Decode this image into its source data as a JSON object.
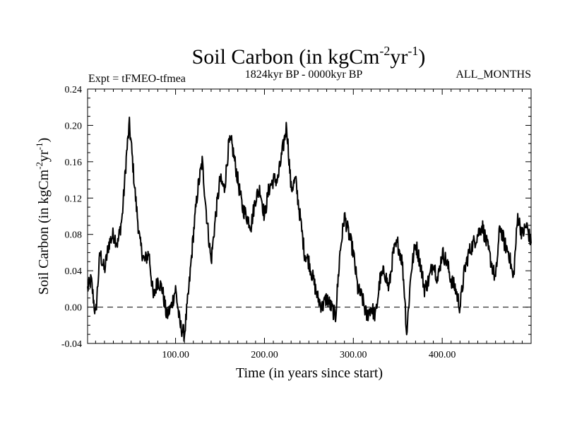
{
  "chart_data": {
    "type": "line",
    "title": {
      "main": "Soil Carbon (in kgCm",
      "sup1": "-2",
      "mid": "yr",
      "sup2": "-1",
      "end": ")"
    },
    "subtitle_left": "Expt = tFMEO-tfmea",
    "subtitle_center": "1824kyr BP - 0000kyr BP",
    "subtitle_right": "ALL_MONTHS",
    "xlabel": "Time (in years since start)",
    "ylabel": {
      "main": "Soil Carbon (in kgCm",
      "sup1": "-2",
      "mid": "yr",
      "sup2": "-1",
      "end": ")"
    },
    "xlim": [
      1,
      500
    ],
    "ylim": [
      -0.04,
      0.24
    ],
    "xticks": [
      100,
      200,
      300,
      400
    ],
    "xtick_labels": [
      "100.00",
      "200.00",
      "300.00",
      "400.00"
    ],
    "yticks": [
      -0.04,
      0.0,
      0.04,
      0.08,
      0.12,
      0.16,
      0.2,
      0.24
    ],
    "ytick_labels": [
      "-0.04",
      "0.00",
      "0.04",
      "0.08",
      "0.12",
      "0.16",
      "0.20",
      "0.24"
    ],
    "zero_line": 0.0,
    "series": [
      {
        "name": "Soil Carbon",
        "color": "#000000",
        "x": [
          1,
          5,
          10,
          15,
          20,
          25,
          30,
          35,
          40,
          45,
          48,
          50,
          55,
          60,
          65,
          70,
          75,
          80,
          85,
          90,
          95,
          100,
          105,
          110,
          115,
          120,
          125,
          130,
          135,
          140,
          145,
          150,
          155,
          160,
          163,
          165,
          170,
          175,
          180,
          185,
          190,
          195,
          200,
          205,
          210,
          215,
          220,
          225,
          230,
          235,
          240,
          245,
          250,
          255,
          260,
          265,
          270,
          275,
          280,
          285,
          290,
          295,
          300,
          305,
          310,
          315,
          320,
          325,
          330,
          335,
          340,
          345,
          350,
          355,
          358,
          360,
          365,
          370,
          375,
          380,
          385,
          390,
          395,
          400,
          405,
          410,
          415,
          420,
          425,
          430,
          435,
          440,
          445,
          450,
          455,
          460,
          465,
          470,
          475,
          480,
          485,
          490,
          495,
          500
        ],
        "y": [
          0.02,
          0.03,
          -0.01,
          0.06,
          0.04,
          0.07,
          0.08,
          0.07,
          0.1,
          0.17,
          0.2,
          0.18,
          0.12,
          0.07,
          0.05,
          0.06,
          0.01,
          0.03,
          0.02,
          -0.01,
          0.0,
          0.02,
          -0.02,
          -0.03,
          0.02,
          0.08,
          0.13,
          0.16,
          0.1,
          0.05,
          0.1,
          0.14,
          0.13,
          0.18,
          0.18,
          0.17,
          0.14,
          0.11,
          0.1,
          0.09,
          0.12,
          0.13,
          0.1,
          0.13,
          0.14,
          0.14,
          0.17,
          0.2,
          0.13,
          0.14,
          0.1,
          0.06,
          0.05,
          0.03,
          0.01,
          0.0,
          0.01,
          0.0,
          -0.01,
          0.06,
          0.1,
          0.08,
          0.06,
          0.02,
          0.01,
          -0.01,
          0.0,
          -0.01,
          0.03,
          0.04,
          0.02,
          0.06,
          0.07,
          0.05,
          0.01,
          -0.03,
          0.04,
          0.07,
          0.05,
          0.02,
          0.03,
          0.05,
          0.03,
          0.06,
          0.05,
          0.03,
          0.02,
          0.0,
          0.04,
          0.06,
          0.07,
          0.08,
          0.09,
          0.07,
          0.05,
          0.03,
          0.09,
          0.07,
          0.06,
          0.03,
          0.1,
          0.08,
          0.09,
          0.07
        ]
      }
    ]
  }
}
